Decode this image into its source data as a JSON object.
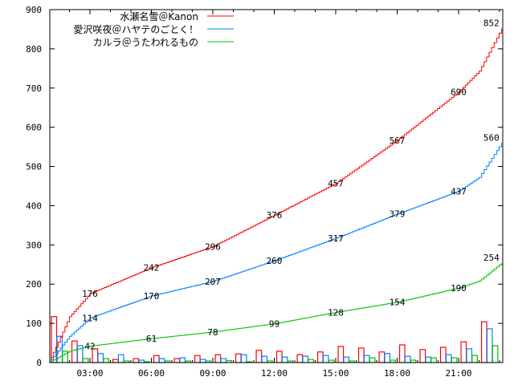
{
  "chart_data": {
    "type": "line",
    "title": "",
    "xlabel": "",
    "ylabel": "",
    "ylim": [
      0,
      900
    ],
    "xlim_hours": [
      1.04,
      23.16
    ],
    "y_ticks": [
      "0",
      "100",
      "200",
      "300",
      "400",
      "500",
      "600",
      "700",
      "800",
      "900"
    ],
    "x_ticks": [
      {
        "hour": 3,
        "label": "03:00"
      },
      {
        "hour": 6,
        "label": "06:00"
      },
      {
        "hour": 9,
        "label": "09:00"
      },
      {
        "hour": 12,
        "label": "12:00"
      },
      {
        "hour": 15,
        "label": "15:00"
      },
      {
        "hour": 18,
        "label": "18:00"
      },
      {
        "hour": 21,
        "label": "21:00"
      }
    ],
    "grid": false,
    "legend_position": "top-left",
    "series": [
      {
        "name": "水瀬名雪＠Kanon",
        "color": "#ff0000",
        "cumulative": [
          [
            1.0,
            0
          ],
          [
            2.0,
            117
          ],
          [
            3,
            176
          ],
          [
            6,
            242
          ],
          [
            9,
            296
          ],
          [
            12,
            376
          ],
          [
            15,
            457
          ],
          [
            18,
            567
          ],
          [
            21,
            690
          ],
          [
            22,
            743
          ],
          [
            23.1,
            852
          ]
        ],
        "labels": [
          [
            3,
            "176"
          ],
          [
            6,
            "242"
          ],
          [
            9,
            "296"
          ],
          [
            12,
            "376"
          ],
          [
            15,
            "457"
          ],
          [
            18,
            "567"
          ],
          [
            21,
            "690"
          ],
          [
            22.6,
            "852"
          ]
        ],
        "hourly": [
          117,
          55,
          35,
          8,
          10,
          18,
          10,
          18,
          20,
          22,
          31,
          29,
          20,
          27,
          41,
          37,
          27,
          45,
          33,
          39,
          53,
          104
        ]
      },
      {
        "name": "愛沢咲夜＠ハヤテのごとく！",
        "color": "#0080ff",
        "cumulative": [
          [
            1.0,
            0
          ],
          [
            2.0,
            67
          ],
          [
            3,
            114
          ],
          [
            6,
            170
          ],
          [
            9,
            207
          ],
          [
            12,
            260
          ],
          [
            15,
            317
          ],
          [
            18,
            379
          ],
          [
            21,
            437
          ],
          [
            22,
            472
          ],
          [
            23.1,
            560
          ]
        ],
        "labels": [
          [
            3,
            "114"
          ],
          [
            6,
            "170"
          ],
          [
            9,
            "207"
          ],
          [
            12,
            "260"
          ],
          [
            15,
            "317"
          ],
          [
            18,
            "379"
          ],
          [
            21,
            "437"
          ],
          [
            22.6,
            "560"
          ]
        ],
        "hourly": [
          67,
          43,
          23,
          20,
          6,
          10,
          12,
          8,
          10,
          20,
          16,
          14,
          16,
          18,
          14,
          18,
          23,
          16,
          14,
          20,
          35,
          86
        ]
      },
      {
        "name": "カルラ＠うたわれるもの",
        "color": "#00c000",
        "cumulative": [
          [
            1.0,
            0
          ],
          [
            2.0,
            29
          ],
          [
            3,
            42
          ],
          [
            6,
            61
          ],
          [
            9,
            78
          ],
          [
            12,
            99
          ],
          [
            15,
            128
          ],
          [
            18,
            154
          ],
          [
            21,
            190
          ],
          [
            22,
            208
          ],
          [
            23.1,
            254
          ]
        ],
        "labels": [
          [
            3,
            "42"
          ],
          [
            6,
            "61"
          ],
          [
            9,
            "78"
          ],
          [
            12,
            "99"
          ],
          [
            15,
            "128"
          ],
          [
            18,
            "154"
          ],
          [
            21,
            "190"
          ],
          [
            22.6,
            "254"
          ]
        ],
        "hourly": [
          29,
          10,
          10,
          4,
          2,
          4,
          4,
          4,
          5,
          2,
          4,
          4,
          8,
          6,
          4,
          12,
          6,
          6,
          12,
          12,
          18,
          43
        ]
      }
    ]
  }
}
